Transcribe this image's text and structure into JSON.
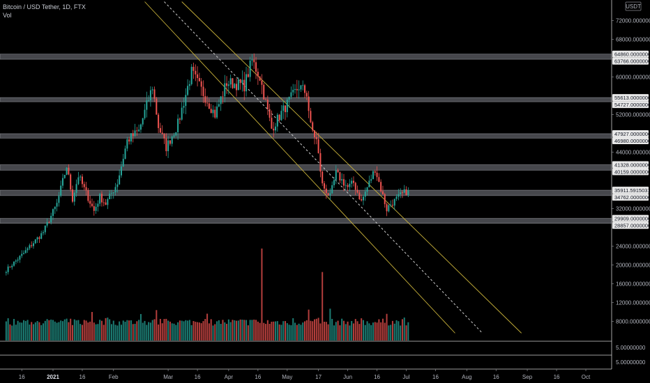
{
  "header": {
    "symbol_title": "Bitcoin / USD Tether, 1D, FTX",
    "volume_label": "Vol"
  },
  "colors": {
    "background": "#000000",
    "up": "#26a69a",
    "down": "#ef5350",
    "zone": "#5d5f66",
    "channel": "#c9b23a",
    "midline": "#d0d0d0",
    "axis_text": "#b2b5be",
    "badge_bg": "#e8e8e8"
  },
  "chart_data": {
    "type": "candlestick",
    "symbol": "BTCUSDT",
    "timeframe": "1D",
    "exchange": "FTX",
    "price_axis": {
      "currency": "USDT",
      "range": [
        5500,
        76000
      ],
      "ticks": [
        {
          "value": 72000,
          "label": "72000.00000000"
        },
        {
          "value": 68000,
          "label": "68000.00000000"
        },
        {
          "value": 60000,
          "label": "60000.00000000"
        },
        {
          "value": 52000,
          "label": "52000.00000000"
        },
        {
          "value": 44000,
          "label": "44000.00000000"
        },
        {
          "value": 32000,
          "label": "32000.00000000"
        },
        {
          "value": 24000,
          "label": "24000.00000000"
        },
        {
          "value": 20000,
          "label": "20000.00000000"
        },
        {
          "value": 16000,
          "label": "16000.00000000"
        },
        {
          "value": 12000,
          "label": "12000.00000000"
        },
        {
          "value": 8000,
          "label": "8000.00000000"
        }
      ],
      "price_labels": [
        {
          "value": 64860,
          "label": "64860.00000000"
        },
        {
          "value": 63766,
          "label": "63766.00000000"
        },
        {
          "value": 55613,
          "label": "55613.00000000"
        },
        {
          "value": 54727,
          "label": "54727.00000000"
        },
        {
          "value": 47927,
          "label": "47927.00000000"
        },
        {
          "value": 46980,
          "label": "46980.00000000"
        },
        {
          "value": 41328,
          "label": "41328.00000000"
        },
        {
          "value": 40159,
          "label": "40159.00000000"
        },
        {
          "value": 35911.5915,
          "label": "35911.59150311"
        },
        {
          "value": 34762,
          "label": "34762.00000000"
        },
        {
          "value": 29909,
          "label": "29909.00000000"
        },
        {
          "value": 28857,
          "label": "28857.00000000"
        }
      ]
    },
    "volume_pane_labels": [
      "5.00000000",
      "5.00000000"
    ],
    "time_axis": {
      "labels": [
        {
          "date": "2020-12-16",
          "label": "16",
          "bold": false
        },
        {
          "date": "2021-01-01",
          "label": "2021",
          "bold": true
        },
        {
          "date": "2021-01-16",
          "label": "16",
          "bold": false
        },
        {
          "date": "2021-02-01",
          "label": "Feb",
          "bold": false
        },
        {
          "date": "2021-03-01",
          "label": "Mar",
          "bold": false
        },
        {
          "date": "2021-03-16",
          "label": "16",
          "bold": false
        },
        {
          "date": "2021-04-01",
          "label": "Apr",
          "bold": false
        },
        {
          "date": "2021-04-16",
          "label": "16",
          "bold": false
        },
        {
          "date": "2021-05-01",
          "label": "May",
          "bold": false
        },
        {
          "date": "2021-05-17",
          "label": "17",
          "bold": false
        },
        {
          "date": "2021-06-01",
          "label": "Jun",
          "bold": false
        },
        {
          "date": "2021-06-16",
          "label": "16",
          "bold": false
        },
        {
          "date": "2021-07-01",
          "label": "Jul",
          "bold": false
        },
        {
          "date": "2021-07-16",
          "label": "16",
          "bold": false
        },
        {
          "date": "2021-08-01",
          "label": "Aug",
          "bold": false
        },
        {
          "date": "2021-08-16",
          "label": "16",
          "bold": false
        },
        {
          "date": "2021-09-01",
          "label": "Sep",
          "bold": false
        },
        {
          "date": "2021-09-16",
          "label": "16",
          "bold": false
        },
        {
          "date": "2021-10-01",
          "label": "Oct",
          "bold": false
        }
      ]
    },
    "zones": [
      {
        "low": 63766,
        "high": 64860
      },
      {
        "low": 54727,
        "high": 55613
      },
      {
        "low": 46980,
        "high": 47927
      },
      {
        "low": 40159,
        "high": 41328
      },
      {
        "low": 34762,
        "high": 35911.5915
      },
      {
        "low": 28857,
        "high": 29909
      }
    ],
    "channel": {
      "upper": [
        {
          "date": "2021-03-08",
          "price": 76000
        },
        {
          "date": "2021-08-29",
          "price": 5500
        }
      ],
      "lower": [
        {
          "date": "2021-02-17",
          "price": 76000
        },
        {
          "date": "2021-07-26",
          "price": 5500
        }
      ],
      "middle": [
        {
          "date": "2021-02-27",
          "price": 76000
        },
        {
          "date": "2021-08-09",
          "price": 5500
        }
      ]
    },
    "anchors": [
      {
        "date": "2020-12-08",
        "close": 18900
      },
      {
        "date": "2020-12-17",
        "close": 22500
      },
      {
        "date": "2020-12-27",
        "close": 27000
      },
      {
        "date": "2021-01-03",
        "close": 33000
      },
      {
        "date": "2021-01-08",
        "close": 41000
      },
      {
        "date": "2021-01-11",
        "close": 34000
      },
      {
        "date": "2021-01-14",
        "close": 39000
      },
      {
        "date": "2021-01-22",
        "close": 31500
      },
      {
        "date": "2021-01-25",
        "close": 34500
      },
      {
        "date": "2021-01-28",
        "close": 33000
      },
      {
        "date": "2021-02-03",
        "close": 37500
      },
      {
        "date": "2021-02-08",
        "close": 46500
      },
      {
        "date": "2021-02-14",
        "close": 48500
      },
      {
        "date": "2021-02-21",
        "close": 58000
      },
      {
        "date": "2021-02-24",
        "close": 49500
      },
      {
        "date": "2021-02-28",
        "close": 45000
      },
      {
        "date": "2021-03-06",
        "close": 50000
      },
      {
        "date": "2021-03-13",
        "close": 61000
      },
      {
        "date": "2021-03-17",
        "close": 58000
      },
      {
        "date": "2021-03-25",
        "close": 52000
      },
      {
        "date": "2021-03-31",
        "close": 58800
      },
      {
        "date": "2021-04-05",
        "close": 58500
      },
      {
        "date": "2021-04-09",
        "close": 58200
      },
      {
        "date": "2021-04-13",
        "close": 63500
      },
      {
        "date": "2021-04-17",
        "close": 60000
      },
      {
        "date": "2021-04-23",
        "close": 49000
      },
      {
        "date": "2021-04-29",
        "close": 53000
      },
      {
        "date": "2021-05-07",
        "close": 58000
      },
      {
        "date": "2021-05-11",
        "close": 56500
      },
      {
        "date": "2021-05-13",
        "close": 49500
      },
      {
        "date": "2021-05-16",
        "close": 46500
      },
      {
        "date": "2021-05-19",
        "close": 37000
      },
      {
        "date": "2021-05-23",
        "close": 34500
      },
      {
        "date": "2021-05-26",
        "close": 39500
      },
      {
        "date": "2021-06-01",
        "close": 36500
      },
      {
        "date": "2021-06-04",
        "close": 37500
      },
      {
        "date": "2021-06-08",
        "close": 33500
      },
      {
        "date": "2021-06-15",
        "close": 40500
      },
      {
        "date": "2021-06-21",
        "close": 31800
      },
      {
        "date": "2021-06-22",
        "close": 32500
      },
      {
        "date": "2021-06-28",
        "close": 34800
      },
      {
        "date": "2021-07-02",
        "close": 35911.5915
      }
    ],
    "volume_spikes": [
      {
        "date": "2021-04-18",
        "value": 23500
      },
      {
        "date": "2021-05-19",
        "value": 18500
      },
      {
        "date": "2021-05-23",
        "value": 10700
      },
      {
        "date": "2021-05-12",
        "value": 10500
      },
      {
        "date": "2021-01-21",
        "value": 10000
      },
      {
        "date": "2021-02-23",
        "value": 10400
      },
      {
        "date": "2021-06-21",
        "value": 9600
      }
    ]
  }
}
